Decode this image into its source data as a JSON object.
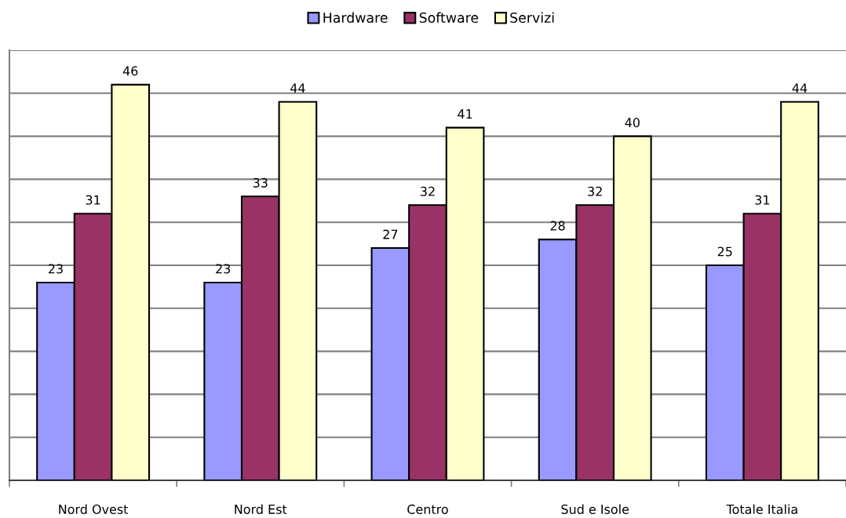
{
  "chart_data": {
    "type": "bar",
    "categories": [
      "Nord Ovest",
      "Nord Est",
      "Centro",
      "Sud e Isole",
      "Totale Italia"
    ],
    "series": [
      {
        "name": "Hardware",
        "color": "#9999ff",
        "values": [
          23,
          23,
          27,
          28,
          25
        ]
      },
      {
        "name": "Software",
        "color": "#993366",
        "values": [
          31,
          33,
          32,
          32,
          31
        ]
      },
      {
        "name": "Servizi",
        "color": "#ffffcc",
        "values": [
          46,
          44,
          41,
          40,
          44
        ]
      }
    ],
    "ylim": [
      0,
      50
    ],
    "yticks": [
      {
        "value": 0,
        "label": null
      },
      {
        "value": 5,
        "label": null
      },
      {
        "value": 10,
        "label": null
      },
      {
        "value": 15,
        "label": null
      },
      {
        "value": 20,
        "label": null
      },
      {
        "value": 25,
        "label": null
      },
      {
        "value": 30,
        "label": null
      },
      {
        "value": 35,
        "label": null
      },
      {
        "value": 40,
        "label": null
      },
      {
        "value": 45,
        "label": null
      },
      {
        "value": 50,
        "label": null
      }
    ],
    "tick_labels": "x",
    "grid": "y",
    "legend": "top",
    "data_labels": true
  }
}
